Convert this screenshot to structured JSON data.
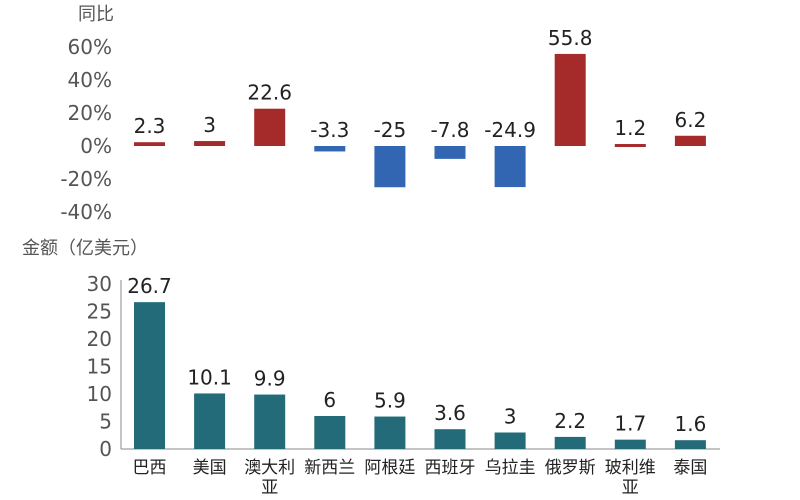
{
  "chart_data": [
    {
      "type": "bar",
      "ylabel": "同比",
      "categories": [
        "巴西",
        "美国",
        "澳大利亚",
        "新西兰",
        "阿根廷",
        "西班牙",
        "乌拉圭",
        "俄罗斯",
        "玻利维亚",
        "泰国"
      ],
      "values": [
        2.3,
        3,
        22.6,
        -3.3,
        -25,
        -7.8,
        -24.9,
        55.8,
        1.2,
        6.2
      ],
      "data_labels": [
        "2.3",
        "3",
        "22.6",
        "-3.3",
        "-25",
        "-7.8",
        "-24.9",
        "55.8",
        "1.2",
        "6.2"
      ],
      "ylim": [
        -40,
        60
      ],
      "yticks": [
        "60%",
        "40%",
        "20%",
        "0%",
        "-20%",
        "-40%"
      ],
      "grid": false,
      "colors": {
        "positive": "#A52A2A",
        "negative": "#3366B2"
      }
    },
    {
      "type": "bar",
      "ylabel": "金额（亿美元）",
      "categories": [
        "巴西",
        "美国",
        "澳大利亚",
        "新西兰",
        "阿根廷",
        "西班牙",
        "乌拉圭",
        "俄罗斯",
        "玻利维亚",
        "泰国"
      ],
      "category_labels": [
        [
          "巴西"
        ],
        [
          "美国"
        ],
        [
          "澳大利",
          "亚"
        ],
        [
          "新西兰"
        ],
        [
          "阿根廷"
        ],
        [
          "西班牙"
        ],
        [
          "乌拉圭"
        ],
        [
          "俄罗斯"
        ],
        [
          "玻利维",
          "亚"
        ],
        [
          "泰国"
        ]
      ],
      "values": [
        26.7,
        10.1,
        9.9,
        6,
        5.9,
        3.6,
        3,
        2.2,
        1.7,
        1.6
      ],
      "data_labels": [
        "26.7",
        "10.1",
        "9.9",
        "6",
        "5.9",
        "3.6",
        "3",
        "2.2",
        "1.7",
        "1.6"
      ],
      "ylim": [
        0,
        30
      ],
      "yticks": [
        "30",
        "25",
        "20",
        "15",
        "10",
        "5",
        "0"
      ],
      "grid": false,
      "colors": {
        "bar": "#246B7A",
        "axis": "#888888"
      }
    }
  ]
}
